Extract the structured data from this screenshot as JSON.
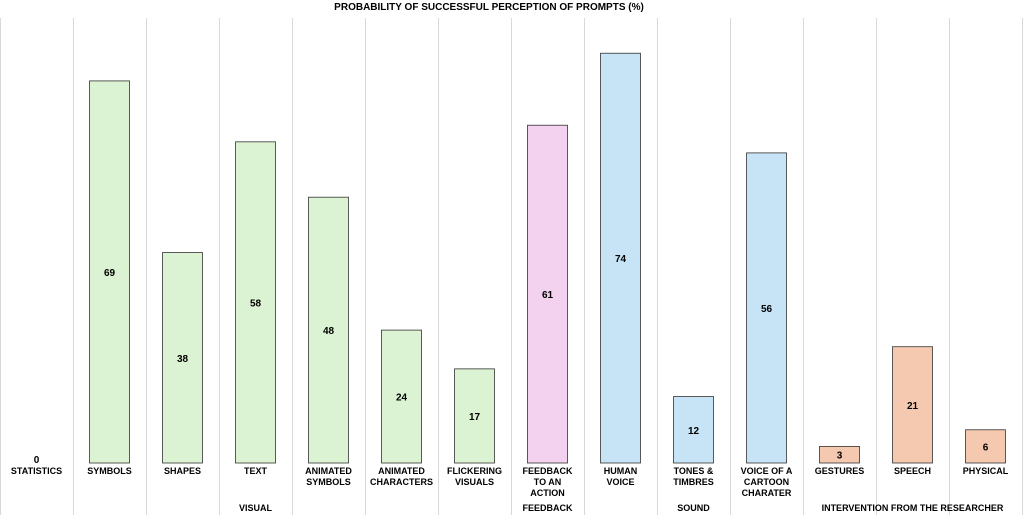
{
  "chart_data": {
    "type": "bar",
    "title": "PROBABILITY OF SUCCESSFUL PERCEPTION OF PROMPTS (%)",
    "xlabel": "",
    "ylabel": "",
    "ylim": [
      0,
      80
    ],
    "grid": "vertical",
    "categories": [
      [
        "STATISTICS"
      ],
      [
        "SYMBOLS"
      ],
      [
        "SHAPES"
      ],
      [
        "TEXT"
      ],
      [
        "ANIMATED",
        "SYMBOLS"
      ],
      [
        "ANIMATED",
        "CHARACTERS"
      ],
      [
        "FLICKERING",
        "VISUALS"
      ],
      [
        "FEEDBACK",
        "TO AN",
        "ACTION"
      ],
      [
        "HUMAN",
        "VOICE"
      ],
      [
        "TONES &",
        "TIMBRES"
      ],
      [
        "VOICE OF A",
        "CARTOON",
        "CHARATER"
      ],
      [
        "GESTURES"
      ],
      [
        "SPEECH"
      ],
      [
        "PHYSICAL"
      ]
    ],
    "values": [
      0,
      69,
      38,
      58,
      48,
      24,
      17,
      61,
      74,
      12,
      56,
      3,
      21,
      6
    ],
    "bar_heights": [
      0,
      69,
      38,
      58,
      48,
      24,
      17,
      61,
      74,
      12,
      56,
      3,
      21,
      6
    ],
    "groups": [
      {
        "name": "VISUAL",
        "categories": [
          "STATISTICS",
          "SYMBOLS",
          "SHAPES",
          "TEXT",
          "ANIMATED SYMBOLS",
          "ANIMATED CHARACTERS",
          "FLICKERING VISUALS"
        ],
        "color": "#dbf2d3"
      },
      {
        "name": "FEEDBACK",
        "categories": [
          "FEEDBACK TO AN ACTION"
        ],
        "color": "#f2d2ee"
      },
      {
        "name": "SOUND",
        "categories": [
          "HUMAN VOICE",
          "TONES & TIMBRES",
          "VOICE OF A CARTOON CHARATER"
        ],
        "color": "#c6e4f5"
      },
      {
        "name": "INTERVENTION FROM THE RESEARCHER",
        "categories": [
          "GESTURES",
          "SPEECH",
          "PHYSICAL"
        ],
        "color": "#f5c9b0"
      }
    ]
  }
}
